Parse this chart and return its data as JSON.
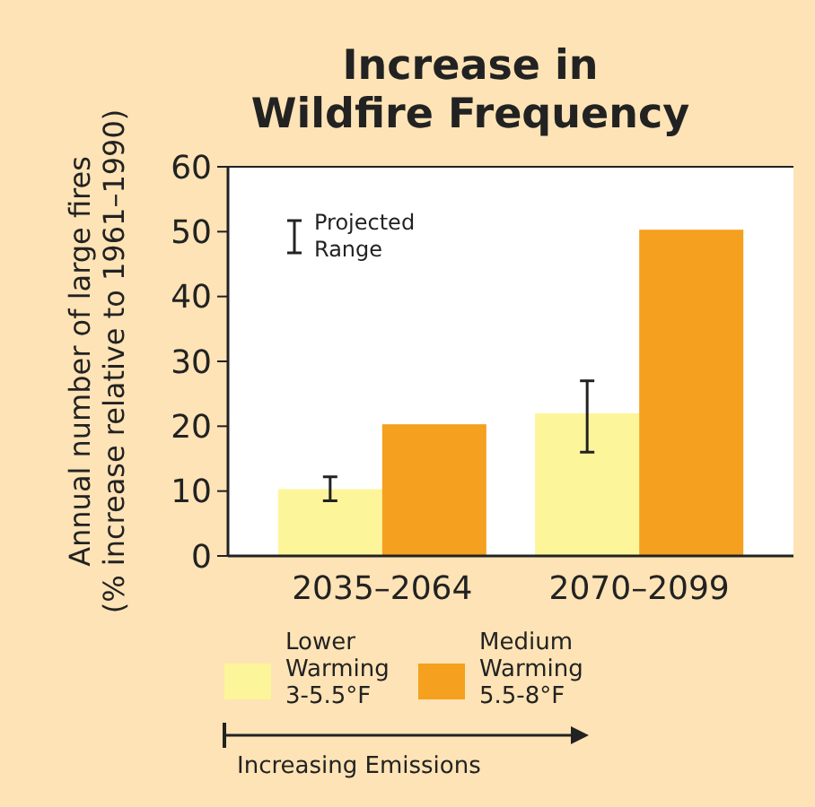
{
  "chart_data": {
    "type": "bar",
    "title": "Increase in\nWildfire Frequency",
    "ylabel": "Annual number of large fires\n(% increase relative to 1961–1990)",
    "categories": [
      "2035–2064",
      "2070–2099"
    ],
    "series": [
      {
        "name": "Lower Warming 3-5.5°F",
        "color": "#fdf59a",
        "values": [
          10.3,
          22
        ],
        "errors": [
          [
            8.5,
            12.2
          ],
          [
            16,
            27
          ]
        ]
      },
      {
        "name": "Medium Warming 5.5-8°F",
        "color": "#f5a01e",
        "values": [
          20.3,
          50.3
        ]
      }
    ],
    "ylim": [
      0,
      60
    ],
    "yticks": [
      0,
      10,
      20,
      30,
      40,
      50,
      60
    ],
    "grid": false,
    "legend": "bottom",
    "annotations": [
      "Projected Range",
      "Increasing Emissions"
    ]
  }
}
